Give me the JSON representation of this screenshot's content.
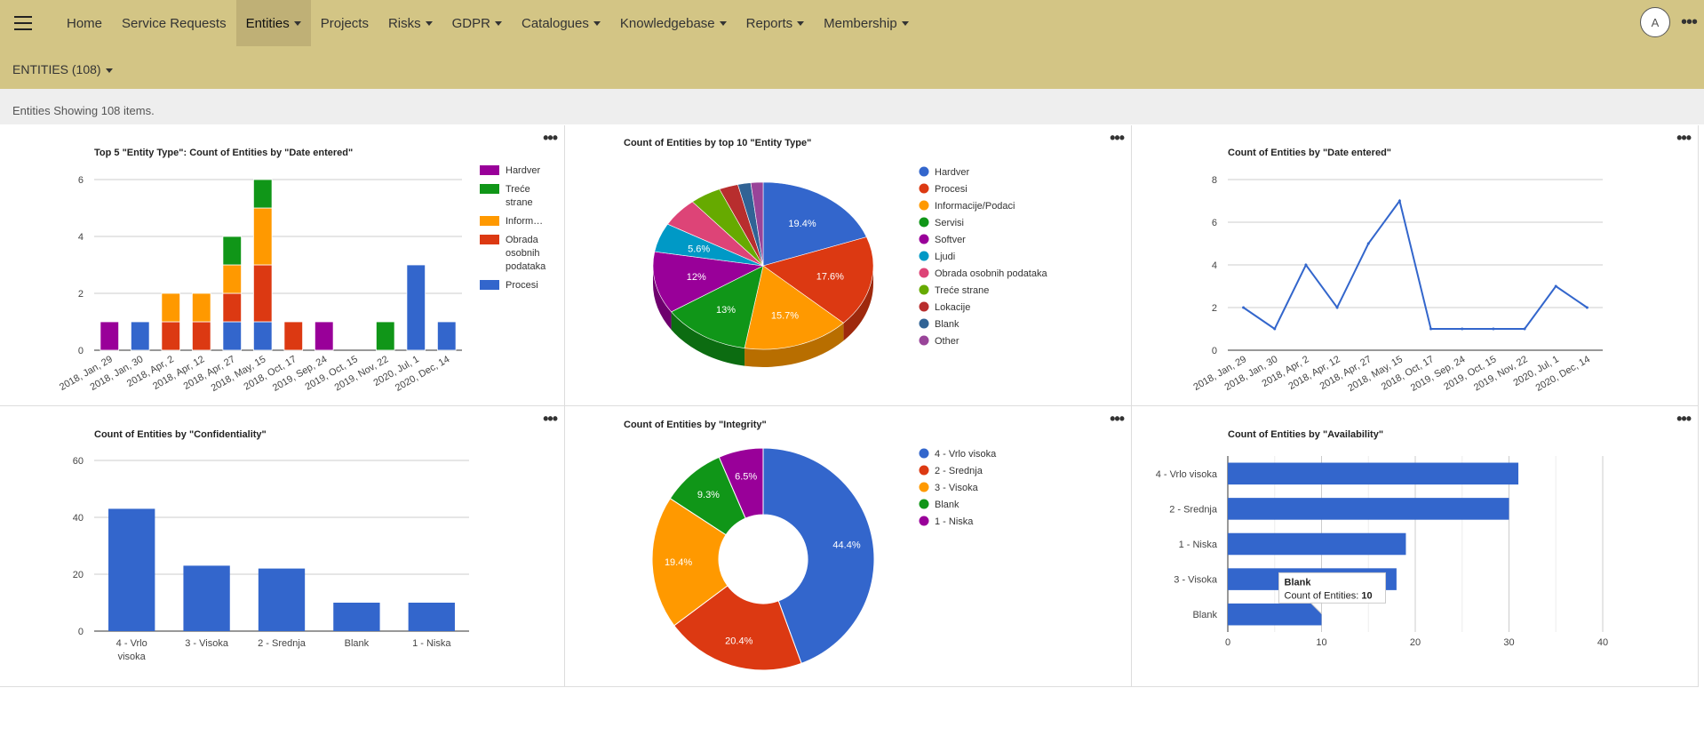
{
  "nav": {
    "items": [
      {
        "label": "Home",
        "dropdown": false
      },
      {
        "label": "Service Requests",
        "dropdown": false
      },
      {
        "label": "Entities",
        "dropdown": true,
        "active": true
      },
      {
        "label": "Projects",
        "dropdown": false
      },
      {
        "label": "Risks",
        "dropdown": true
      },
      {
        "label": "GDPR",
        "dropdown": true
      },
      {
        "label": "Catalogues",
        "dropdown": true
      },
      {
        "label": "Knowledgebase",
        "dropdown": true
      },
      {
        "label": "Reports",
        "dropdown": true
      },
      {
        "label": "Membership",
        "dropdown": true
      }
    ],
    "avatar_initial": "A"
  },
  "page": {
    "entities_title": "ENTITIES (108)",
    "subtitle": "Entities Showing 108 items."
  },
  "colors": {
    "topbar": "#d3c585",
    "blue": "#3366cc",
    "red": "#dc3912",
    "orange": "#ff9900",
    "green": "#109618",
    "purple": "#990099",
    "cyan": "#0099c6",
    "pink": "#dd4477",
    "lime": "#66aa00",
    "darkred": "#b82e2e",
    "navy": "#316395",
    "violet": "#994499"
  },
  "chart_data": [
    {
      "type": "bar",
      "stacked": true,
      "title": "Top 5 \"Entity Type\": Count of Entities by \"Date entered\"",
      "categories": [
        "2018, Jan, 29",
        "2018, Jan, 30",
        "2018, Apr, 2",
        "2018, Apr, 12",
        "2018, Apr, 27",
        "2018, May, 15",
        "2018, Oct, 17",
        "2019, Sep, 24",
        "2019, Oct, 15",
        "2019, Nov, 22",
        "2020, Jul, 1",
        "2020, Dec, 14"
      ],
      "series": [
        {
          "name": "Procesi",
          "color": "#3366cc",
          "values": [
            0,
            1,
            0,
            0,
            1,
            1,
            0,
            0,
            0,
            0,
            3,
            1
          ]
        },
        {
          "name": "Obrada osobnih podataka",
          "color": "#dc3912",
          "values": [
            0,
            0,
            1,
            1,
            1,
            2,
            1,
            0,
            0,
            0,
            0,
            0
          ]
        },
        {
          "name": "Inform…",
          "color": "#ff9900",
          "values": [
            0,
            0,
            1,
            1,
            1,
            2,
            0,
            0,
            0,
            0,
            0,
            0
          ]
        },
        {
          "name": "Treće strane",
          "color": "#109618",
          "values": [
            0,
            0,
            0,
            0,
            1,
            1,
            0,
            0,
            0,
            1,
            0,
            0
          ]
        },
        {
          "name": "Hardver",
          "color": "#990099",
          "values": [
            1,
            0,
            0,
            0,
            0,
            0,
            0,
            1,
            0,
            0,
            0,
            0
          ]
        }
      ],
      "legend_order": [
        "Hardver",
        "Treće strane",
        "Inform…",
        "Obrada osobnih podataka",
        "Procesi"
      ],
      "legend_lines": [
        [
          "Hardver"
        ],
        [
          "Treće",
          "strane"
        ],
        [
          "Inform…"
        ],
        [
          "Obrada",
          "osobnih",
          "podataka"
        ],
        [
          "Procesi"
        ]
      ],
      "yticks": [
        0,
        2,
        4,
        6
      ],
      "ylim": [
        0,
        6
      ],
      "legend": "right"
    },
    {
      "type": "pie",
      "style": "3d",
      "title": "Count of Entities by top 10 \"Entity Type\"",
      "slices": [
        {
          "label": "Hardver",
          "value": 19.4,
          "color": "#3366cc",
          "show_label": "19.4%"
        },
        {
          "label": "Procesi",
          "value": 17.6,
          "color": "#dc3912",
          "show_label": "17.6%"
        },
        {
          "label": "Informacije/Podaci",
          "value": 15.7,
          "color": "#ff9900",
          "show_label": "15.7%"
        },
        {
          "label": "Servisi",
          "value": 13,
          "color": "#109618",
          "show_label": "13%"
        },
        {
          "label": "Softver",
          "value": 12,
          "color": "#990099",
          "show_label": "12%"
        },
        {
          "label": "Ljudi",
          "value": 5.6,
          "color": "#0099c6",
          "show_label": "5.6%"
        },
        {
          "label": "Obrada osobnih podataka",
          "value": 5.6,
          "color": "#dd4477",
          "show_label": ""
        },
        {
          "label": "Treće strane",
          "value": 4.6,
          "color": "#66aa00",
          "show_label": ""
        },
        {
          "label": "Lokacije",
          "value": 2.8,
          "color": "#b82e2e",
          "show_label": ""
        },
        {
          "label": "Blank",
          "value": 1.9,
          "color": "#316395",
          "show_label": ""
        },
        {
          "label": "Other",
          "value": 1.8,
          "color": "#994499",
          "show_label": ""
        }
      ],
      "legend": "right"
    },
    {
      "type": "line",
      "title": "Count of Entities by \"Date entered\"",
      "categories": [
        "2018, Jan, 29",
        "2018, Jan, 30",
        "2018, Apr, 2",
        "2018, Apr, 12",
        "2018, Apr, 27",
        "2018, May, 15",
        "2018, Oct, 17",
        "2019, Sep, 24",
        "2019, Oct, 15",
        "2019, Nov, 22",
        "2020, Jul, 1",
        "2020, Dec, 14"
      ],
      "values": [
        2,
        1,
        4,
        2,
        5,
        7,
        1,
        1,
        1,
        1,
        3,
        2
      ],
      "yticks": [
        0,
        2,
        4,
        6,
        8
      ],
      "ylim": [
        0,
        8
      ],
      "color": "#3366cc"
    },
    {
      "type": "bar",
      "title": "Count of Entities by \"Confidentiality\"",
      "categories": [
        "4 - Vrlo visoka",
        "3 - Visoka",
        "2 - Srednja",
        "Blank",
        "1 - Niska"
      ],
      "category_lines": [
        [
          "4 - Vrlo",
          "visoka"
        ],
        [
          "3 - Visoka"
        ],
        [
          "2 - Srednja"
        ],
        [
          "Blank"
        ],
        [
          "1 - Niska"
        ]
      ],
      "values": [
        43,
        23,
        22,
        10,
        10
      ],
      "yticks": [
        0,
        20,
        40,
        60
      ],
      "ylim": [
        0,
        60
      ],
      "color": "#3366cc"
    },
    {
      "type": "pie",
      "style": "donut",
      "title": "Count of Entities by \"Integrity\"",
      "slices": [
        {
          "label": "4 - Vrlo visoka",
          "value": 44.4,
          "color": "#3366cc",
          "show_label": "44.4%"
        },
        {
          "label": "2 - Srednja",
          "value": 20.4,
          "color": "#dc3912",
          "show_label": "20.4%"
        },
        {
          "label": "3 - Visoka",
          "value": 19.4,
          "color": "#ff9900",
          "show_label": "19.4%"
        },
        {
          "label": "Blank",
          "value": 9.3,
          "color": "#109618",
          "show_label": "9.3%"
        },
        {
          "label": "1 - Niska",
          "value": 6.5,
          "color": "#990099",
          "show_label": "6.5%"
        }
      ],
      "legend": "right"
    },
    {
      "type": "bar",
      "orientation": "horizontal",
      "title": "Count of Entities by \"Availability\"",
      "categories": [
        "4 - Vrlo visoka",
        "2 - Srednja",
        "1 - Niska",
        "3 - Visoka",
        "Blank"
      ],
      "values": [
        31,
        30,
        19,
        18,
        10
      ],
      "xticks": [
        0,
        10,
        20,
        30,
        40
      ],
      "xlim": [
        0,
        40
      ],
      "color": "#3366cc",
      "tooltip": {
        "category": "Blank",
        "label": "Count of Entities:",
        "value": "10"
      }
    }
  ]
}
